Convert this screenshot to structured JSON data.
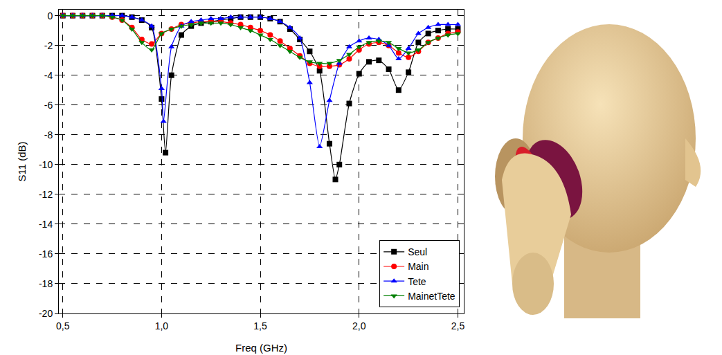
{
  "chart_data": {
    "type": "line",
    "x_label": "Freq (GHz)",
    "y_label": "S11 (dB)",
    "xlim": [
      0.48,
      2.53
    ],
    "xticks": [
      {
        "value": 0.5,
        "label": "0,5"
      },
      {
        "value": 1.0,
        "label": "1,0"
      },
      {
        "value": 1.5,
        "label": "1,5"
      },
      {
        "value": 2.0,
        "label": "2,0"
      },
      {
        "value": 2.5,
        "label": "2,5"
      }
    ],
    "ylim": [
      -20,
      0.4
    ],
    "yticks": [
      -20,
      -18,
      -16,
      -14,
      -12,
      -10,
      -8,
      -6,
      -4,
      -2,
      0
    ],
    "grid": true,
    "legend": "lower right",
    "series": [
      {
        "name": "Seul",
        "color": "#000000",
        "marker": "square",
        "x": [
          0.5,
          0.55,
          0.6,
          0.65,
          0.7,
          0.75,
          0.8,
          0.85,
          0.9,
          0.95,
          1.0,
          1.02,
          1.05,
          1.1,
          1.15,
          1.2,
          1.25,
          1.3,
          1.35,
          1.4,
          1.45,
          1.5,
          1.55,
          1.6,
          1.65,
          1.7,
          1.75,
          1.8,
          1.85,
          1.88,
          1.9,
          1.95,
          2.0,
          2.05,
          2.1,
          2.15,
          2.2,
          2.25,
          2.3,
          2.35,
          2.4,
          2.45,
          2.5
        ],
        "values": [
          0,
          0,
          0,
          0,
          0,
          0,
          0,
          -0.1,
          -0.3,
          -0.8,
          -5.6,
          -9.2,
          -4.0,
          -1.3,
          -0.7,
          -0.5,
          -0.4,
          -0.3,
          -0.2,
          -0.1,
          -0.1,
          -0.1,
          -0.2,
          -0.4,
          -0.9,
          -1.6,
          -2.4,
          -3.7,
          -8.6,
          -11.0,
          -10.0,
          -5.9,
          -3.9,
          -3.1,
          -3.0,
          -3.6,
          -5.0,
          -3.8,
          -1.8,
          -1.2,
          -1.0,
          -0.9,
          -0.9
        ]
      },
      {
        "name": "Main",
        "color": "#ff0000",
        "marker": "circle",
        "x": [
          0.5,
          0.55,
          0.6,
          0.65,
          0.7,
          0.75,
          0.8,
          0.85,
          0.9,
          0.95,
          1.0,
          1.05,
          1.1,
          1.15,
          1.2,
          1.25,
          1.3,
          1.35,
          1.4,
          1.45,
          1.5,
          1.55,
          1.6,
          1.65,
          1.7,
          1.75,
          1.8,
          1.85,
          1.9,
          1.95,
          2.0,
          2.05,
          2.1,
          2.15,
          2.2,
          2.25,
          2.3,
          2.35,
          2.4,
          2.45,
          2.5
        ],
        "values": [
          0,
          0,
          0,
          0,
          0,
          -0.1,
          -0.3,
          -0.8,
          -1.6,
          -1.9,
          -1.2,
          -0.9,
          -0.6,
          -0.5,
          -0.4,
          -0.4,
          -0.4,
          -0.5,
          -0.6,
          -0.8,
          -1.0,
          -1.3,
          -1.7,
          -2.2,
          -2.7,
          -3.2,
          -3.4,
          -3.4,
          -3.3,
          -2.9,
          -2.3,
          -1.9,
          -1.8,
          -2.0,
          -2.5,
          -2.8,
          -2.4,
          -1.8,
          -1.5,
          -1.2,
          -1.1
        ]
      },
      {
        "name": "Tete",
        "color": "#0000ff",
        "marker": "triangle-up",
        "x": [
          0.5,
          0.55,
          0.6,
          0.65,
          0.7,
          0.75,
          0.8,
          0.85,
          0.9,
          0.95,
          1.0,
          1.01,
          1.05,
          1.1,
          1.15,
          1.2,
          1.25,
          1.3,
          1.35,
          1.4,
          1.45,
          1.5,
          1.55,
          1.6,
          1.65,
          1.7,
          1.75,
          1.8,
          1.85,
          1.9,
          1.95,
          2.0,
          2.05,
          2.1,
          2.15,
          2.2,
          2.25,
          2.3,
          2.35,
          2.4,
          2.45,
          2.5
        ],
        "values": [
          0,
          0,
          0,
          0,
          0,
          0,
          0,
          -0.1,
          -0.3,
          -0.7,
          -4.9,
          -7.1,
          -2.1,
          -0.7,
          -0.4,
          -0.3,
          -0.2,
          -0.2,
          -0.1,
          -0.1,
          -0.1,
          -0.1,
          -0.2,
          -0.4,
          -0.8,
          -1.5,
          -4.5,
          -8.8,
          -5.7,
          -3.2,
          -2.1,
          -1.7,
          -1.5,
          -1.6,
          -2.0,
          -2.9,
          -2.2,
          -1.2,
          -0.8,
          -0.6,
          -0.6,
          -0.6
        ]
      },
      {
        "name": "MainetTete",
        "color": "#008000",
        "marker": "triangle-down",
        "x": [
          0.5,
          0.55,
          0.6,
          0.65,
          0.7,
          0.75,
          0.8,
          0.85,
          0.9,
          0.95,
          1.0,
          1.05,
          1.1,
          1.15,
          1.2,
          1.25,
          1.3,
          1.35,
          1.4,
          1.45,
          1.5,
          1.55,
          1.6,
          1.65,
          1.7,
          1.75,
          1.8,
          1.85,
          1.9,
          1.95,
          2.0,
          2.05,
          2.1,
          2.15,
          2.2,
          2.25,
          2.3,
          2.35,
          2.4,
          2.45,
          2.5
        ],
        "values": [
          0,
          0,
          0,
          0,
          0,
          -0.1,
          -0.3,
          -0.9,
          -1.8,
          -2.3,
          -1.2,
          -0.9,
          -0.7,
          -0.6,
          -0.5,
          -0.5,
          -0.5,
          -0.6,
          -0.8,
          -1.0,
          -1.3,
          -1.6,
          -2.0,
          -2.4,
          -2.8,
          -3.1,
          -3.2,
          -3.2,
          -3.0,
          -2.6,
          -2.1,
          -1.8,
          -1.7,
          -1.8,
          -2.2,
          -2.5,
          -2.3,
          -1.8,
          -1.5,
          -1.3,
          -1.2
        ]
      }
    ]
  }
}
